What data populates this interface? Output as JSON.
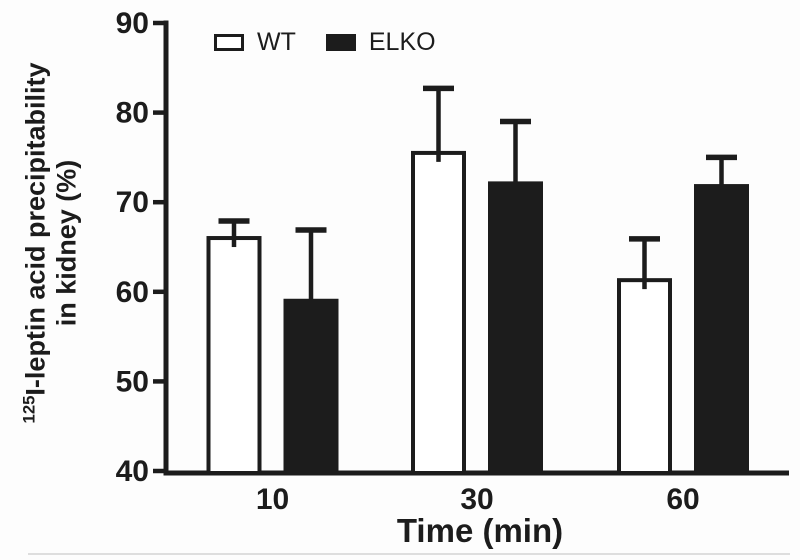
{
  "figure": {
    "background": "#fdfdfd",
    "ink_color": "#1c1c1c"
  },
  "chart_data": {
    "type": "bar",
    "title": "",
    "xlabel": "Time (min)",
    "ylabel": "¹²⁵I-leptin acid precipitability in kidney (%)",
    "ylabel_sup": "125",
    "ylabel_line1": "I-leptin acid precipitability",
    "ylabel_line2": "in kidney (%)",
    "categories": [
      "10",
      "30",
      "60"
    ],
    "series": [
      {
        "name": "WT",
        "fill": "#ffffff",
        "values": [
          66.0,
          75.5,
          61.3
        ],
        "errors_upper": [
          1.9,
          7.2,
          4.6
        ]
      },
      {
        "name": "ELKO",
        "fill": "#1c1c1c",
        "values": [
          59.0,
          72.1,
          71.8
        ],
        "errors_upper": [
          7.9,
          6.9,
          3.2
        ]
      }
    ],
    "ylim": [
      40,
      90
    ],
    "yticks": [
      40,
      50,
      60,
      70,
      80,
      90
    ],
    "error_bars": "upper-only",
    "grid": false,
    "legend_position": "top-inside"
  }
}
